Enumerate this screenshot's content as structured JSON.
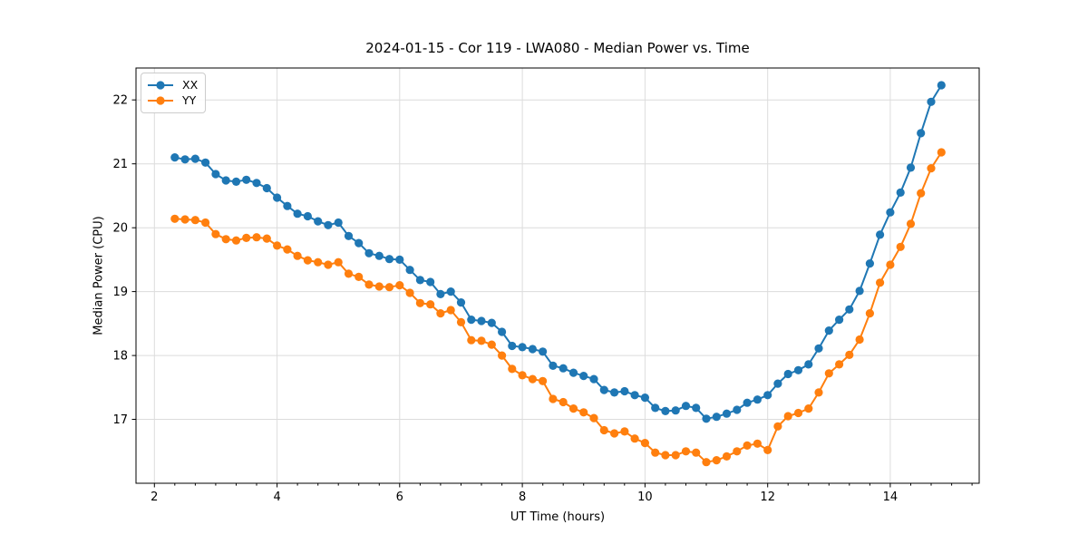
{
  "figure": {
    "title": "2024-01-15 - Cor 119 - LWA080 - Median Power vs. Time",
    "xlabel": "UT Time (hours)",
    "ylabel": "Median Power (CPU)"
  },
  "chart_data": {
    "type": "line",
    "title": "2024-01-15 - Cor 119 - LWA080 - Median Power vs. Time",
    "xlabel": "UT Time (hours)",
    "ylabel": "Median Power (CPU)",
    "xlim": [
      1.7,
      15.45
    ],
    "ylim": [
      16.0,
      22.5
    ],
    "x_ticks": [
      2,
      4,
      6,
      8,
      10,
      12,
      14
    ],
    "y_ticks": [
      17,
      18,
      19,
      20,
      21,
      22
    ],
    "x_minor_step": 0.33333,
    "grid": true,
    "grid_color": "#dcdcdc",
    "axis_color": "#000000",
    "legend_position": "upper-left",
    "marker": "circle",
    "x": [
      2.333,
      2.5,
      2.667,
      2.833,
      3,
      3.167,
      3.333,
      3.5,
      3.667,
      3.833,
      4,
      4.167,
      4.333,
      4.5,
      4.667,
      4.833,
      5,
      5.167,
      5.333,
      5.5,
      5.667,
      5.833,
      6,
      6.167,
      6.333,
      6.5,
      6.667,
      6.833,
      7,
      7.167,
      7.333,
      7.5,
      7.667,
      7.833,
      8,
      8.167,
      8.333,
      8.5,
      8.667,
      8.833,
      9,
      9.167,
      9.333,
      9.5,
      9.667,
      9.833,
      10,
      10.167,
      10.333,
      10.5,
      10.667,
      10.833,
      11,
      11.167,
      11.333,
      11.5,
      11.667,
      11.833,
      12,
      12.167,
      12.333,
      12.5,
      12.667,
      12.833,
      13,
      13.167,
      13.333,
      13.5,
      13.667,
      13.833,
      14,
      14.167,
      14.333,
      14.5,
      14.667,
      14.833
    ],
    "series": [
      {
        "name": "XX",
        "color": "#1f77b4",
        "values": [
          21.1,
          21.07,
          21.08,
          21.02,
          20.84,
          20.74,
          20.72,
          20.75,
          20.7,
          20.62,
          20.47,
          20.34,
          20.22,
          20.18,
          20.1,
          20.04,
          20.08,
          19.87,
          19.76,
          19.6,
          19.56,
          19.51,
          19.5,
          19.34,
          19.18,
          19.15,
          18.96,
          19.0,
          18.83,
          18.56,
          18.54,
          18.51,
          18.37,
          18.15,
          18.13,
          18.1,
          18.06,
          17.84,
          17.8,
          17.73,
          17.68,
          17.63,
          17.46,
          17.42,
          17.44,
          17.38,
          17.34,
          17.18,
          17.13,
          17.14,
          17.21,
          17.18,
          17.01,
          17.04,
          17.09,
          17.15,
          17.26,
          17.31,
          17.38,
          17.56,
          17.71,
          17.77,
          17.86,
          18.11,
          18.39,
          18.56,
          18.72,
          19.01,
          19.44,
          19.89,
          20.24,
          20.55,
          20.94,
          21.48,
          21.97,
          22.23
        ]
      },
      {
        "name": "YY",
        "color": "#ff7f0e",
        "values": [
          20.14,
          20.13,
          20.12,
          20.08,
          19.9,
          19.82,
          19.8,
          19.84,
          19.85,
          19.83,
          19.72,
          19.66,
          19.56,
          19.49,
          19.46,
          19.42,
          19.46,
          19.28,
          19.23,
          19.11,
          19.08,
          19.07,
          19.1,
          18.98,
          18.82,
          18.8,
          18.66,
          18.71,
          18.52,
          18.24,
          18.23,
          18.17,
          18.0,
          17.79,
          17.69,
          17.63,
          17.6,
          17.32,
          17.27,
          17.17,
          17.11,
          17.02,
          16.83,
          16.78,
          16.81,
          16.7,
          16.63,
          16.48,
          16.44,
          16.44,
          16.5,
          16.48,
          16.33,
          16.36,
          16.42,
          16.5,
          16.59,
          16.62,
          16.52,
          16.89,
          17.05,
          17.1,
          17.17,
          17.42,
          17.72,
          17.86,
          18.01,
          18.25,
          18.66,
          19.14,
          19.42,
          19.7,
          20.06,
          20.54,
          20.93,
          21.18
        ]
      }
    ]
  }
}
